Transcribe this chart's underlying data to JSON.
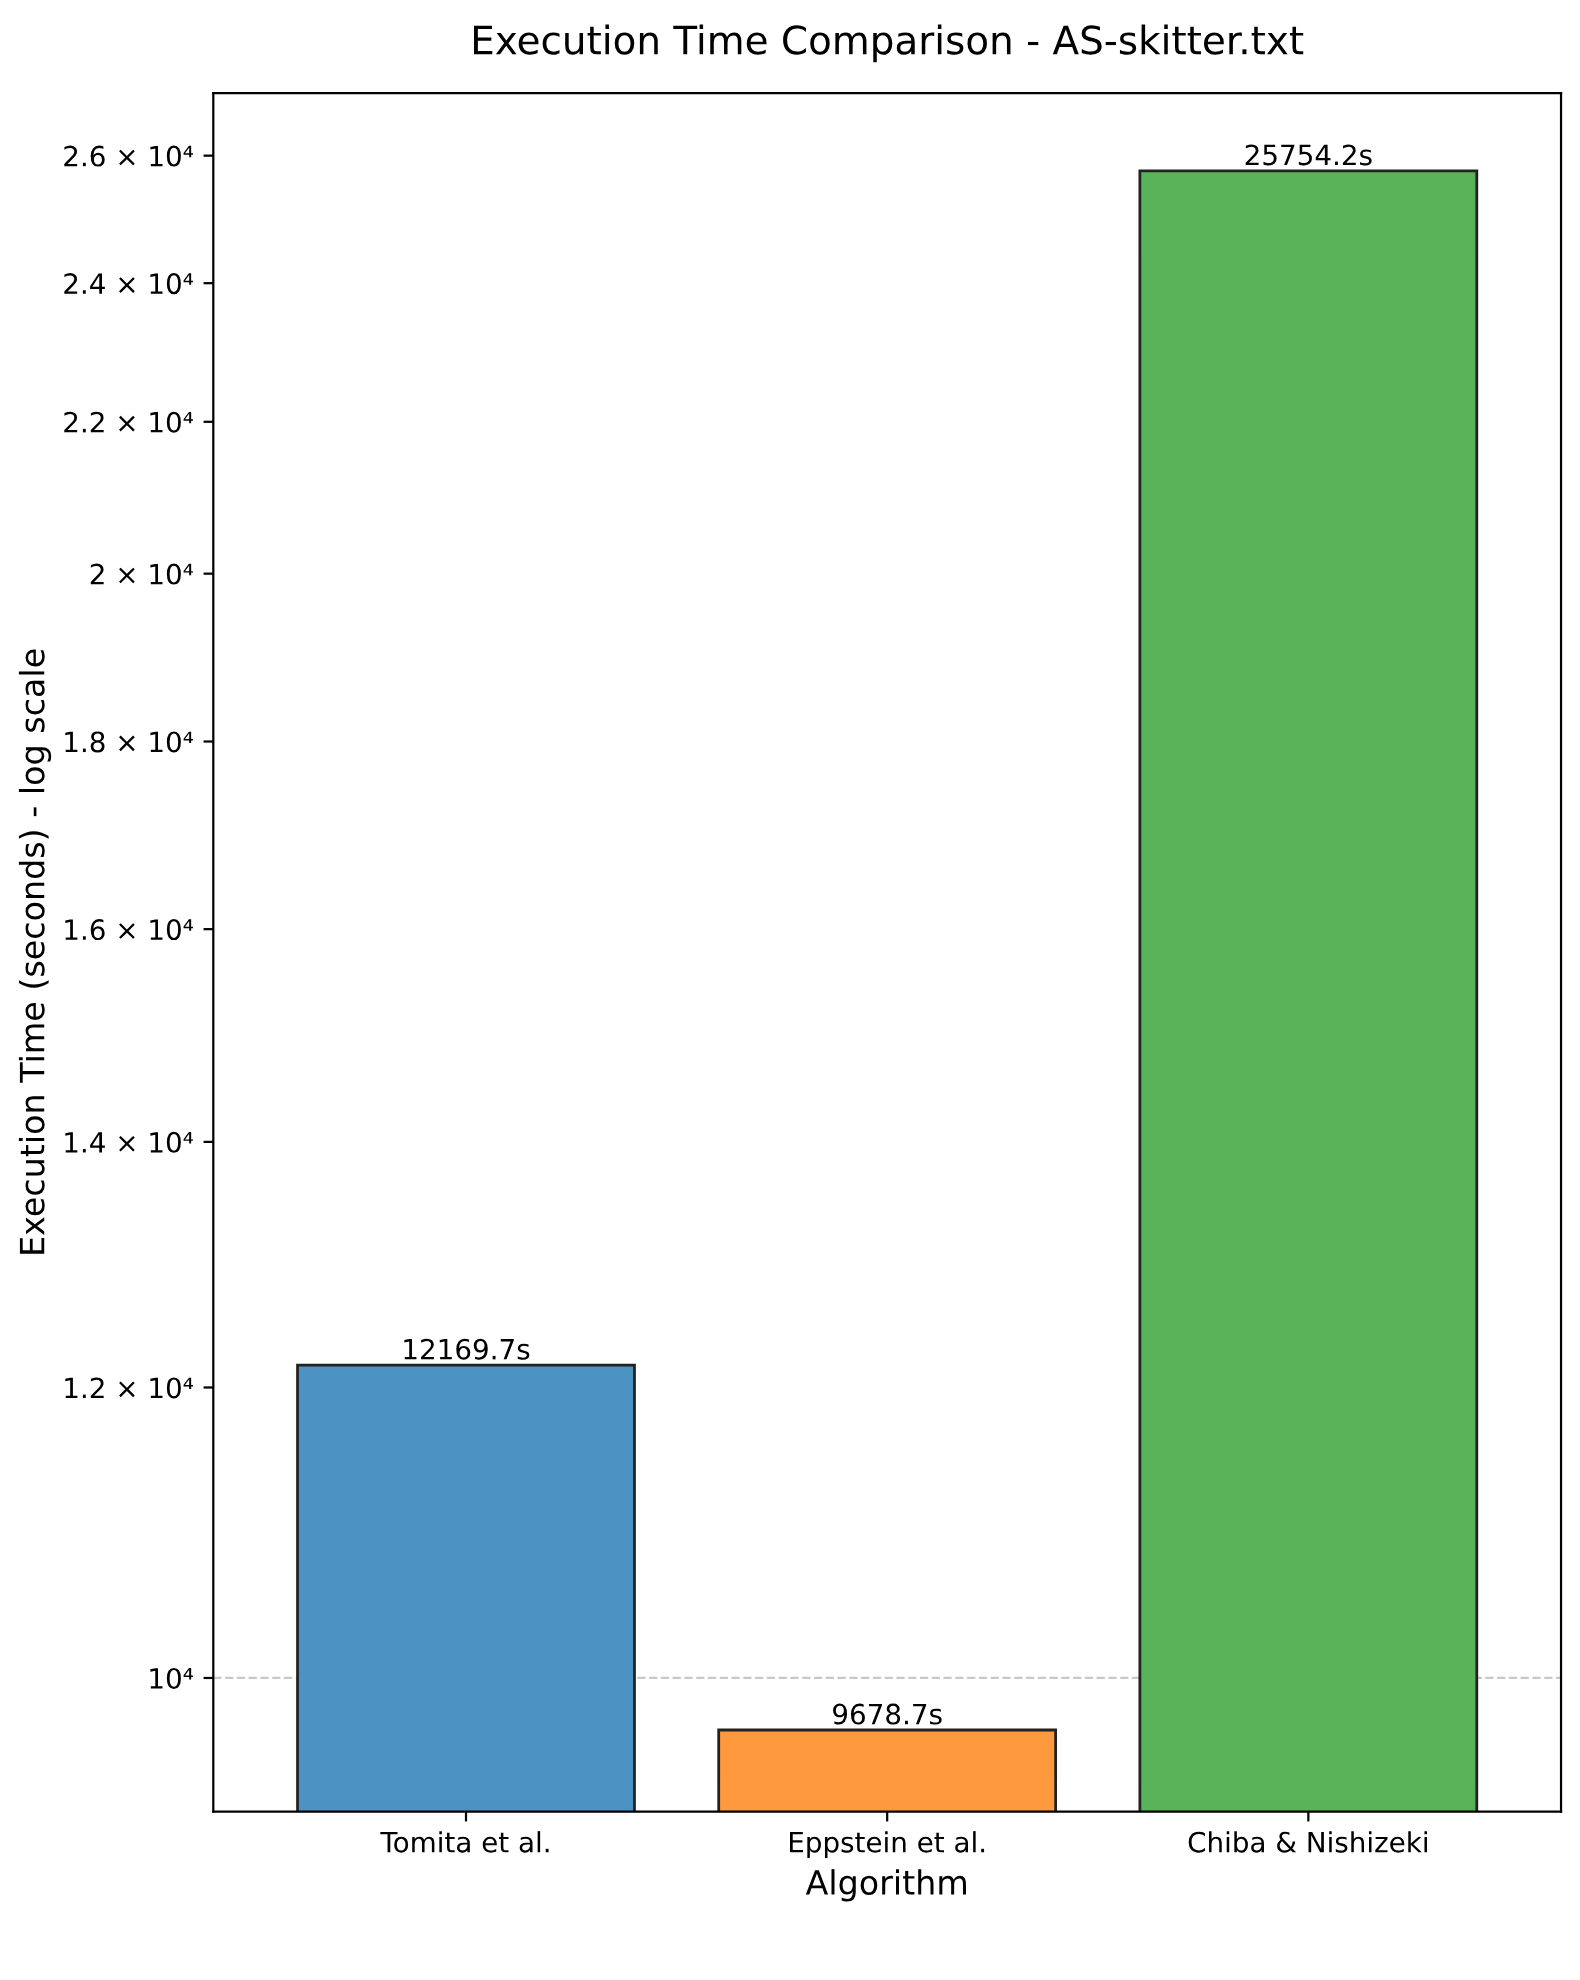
{
  "chart_data": {
    "type": "bar",
    "title": "Execution Time Comparison - AS-skitter.txt",
    "xlabel": "Algorithm",
    "ylabel": "Execution Time (seconds) - log scale",
    "categories": [
      "Tomita et al.",
      "Eppstein et al.",
      "Chiba & Nishizeki"
    ],
    "values": [
      12169.7,
      9678.7,
      25754.2
    ],
    "colors": [
      "#4c93c3",
      "#ff993e",
      "#58b359"
    ],
    "value_labels": [
      "12169.7s",
      "9678.7s",
      "25754.2s"
    ],
    "log": true,
    "ylim": [
      9194.8,
      27041.9
    ],
    "yticks": [
      {
        "value": 10000,
        "label": "10⁴"
      },
      {
        "value": 12000,
        "label": "1.2 × 10⁴"
      },
      {
        "value": 14000,
        "label": "1.4 × 10⁴"
      },
      {
        "value": 16000,
        "label": "1.6 × 10⁴"
      },
      {
        "value": 18000,
        "label": "1.8 × 10⁴"
      },
      {
        "value": 20000,
        "label": "2 × 10⁴"
      },
      {
        "value": 22000,
        "label": "2.2 × 10⁴"
      },
      {
        "value": 24000,
        "label": "2.4 × 10⁴"
      },
      {
        "value": 26000,
        "label": "2.6 × 10⁴"
      }
    ],
    "ref_lines": [
      {
        "axis": "y",
        "value": 10000,
        "label": null,
        "color": "#c8c8c8",
        "line_style": "dashed"
      }
    ]
  }
}
